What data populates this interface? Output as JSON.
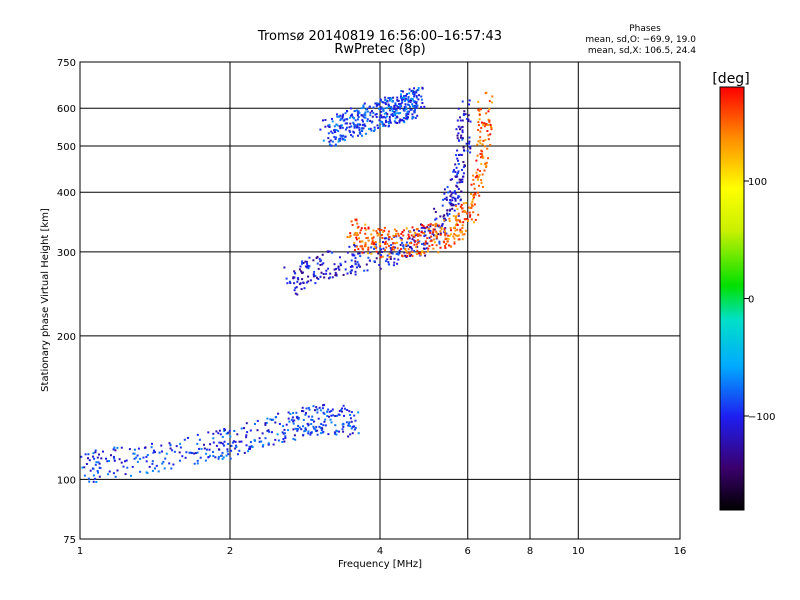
{
  "chart_data": [
    {
      "type": "scatter",
      "title": "Tromsø 20140819 16:56:00–16:57:43",
      "subtitle": "RwPretec (8p)",
      "xlabel": "Frequency [MHz]",
      "ylabel": "Stationary phase Virtual Height [km]",
      "x_scale": "log",
      "y_scale": "log",
      "xlim": [
        1,
        16
      ],
      "ylim": [
        75,
        750
      ],
      "x_ticks": [
        "1",
        "2",
        "4",
        "6",
        "8",
        "10",
        "16"
      ],
      "y_ticks": [
        "75",
        "100",
        "200",
        "300",
        "400",
        "500",
        "600",
        "750"
      ],
      "grid": true,
      "phase_stats": {
        "heading": "Phases",
        "o_line": "mean, sd,O: −69.9, 19.0",
        "x_line": "mean, sd,X: 106.5, 24.4"
      },
      "traces": [
        {
          "note": "low-band trace blue",
          "x": [
            1.0,
            1.1,
            1.3,
            1.5,
            1.7,
            1.9,
            2.0,
            2.2,
            2.5,
            2.8,
            3.0,
            3.3,
            3.6
          ],
          "y": [
            105,
            108,
            110,
            113,
            116,
            118,
            120,
            124,
            128,
            132,
            134,
            134,
            132
          ],
          "phase": -95
        },
        {
          "note": "F-layer trace",
          "x": [
            2.6,
            2.8,
            3.0,
            3.3,
            3.6,
            4.0,
            4.4,
            4.8,
            5.1,
            5.4,
            5.6,
            5.75,
            5.85,
            5.9
          ],
          "y": [
            262,
            270,
            278,
            285,
            292,
            298,
            305,
            318,
            335,
            360,
            390,
            430,
            500,
            600
          ],
          "phase": -110
        },
        {
          "note": "X-mode trace orange",
          "x": [
            3.5,
            3.8,
            4.1,
            4.5,
            5.0,
            5.5,
            6.0,
            6.3,
            6.45,
            6.5
          ],
          "y": [
            330,
            318,
            315,
            316,
            320,
            330,
            360,
            420,
            520,
            640
          ],
          "phase": 150
        },
        {
          "note": "sporadic upper echoes",
          "x": [
            3.1,
            3.5,
            4.0,
            4.4,
            4.8
          ],
          "y": [
            530,
            560,
            585,
            605,
            625
          ],
          "phase": -90
        }
      ],
      "colorbar": {
        "label": "[deg]",
        "range": [
          -180,
          180
        ],
        "tick_labels": [
          "100",
          "0",
          "−100"
        ],
        "tick_values": [
          100,
          0,
          -100
        ]
      }
    }
  ]
}
